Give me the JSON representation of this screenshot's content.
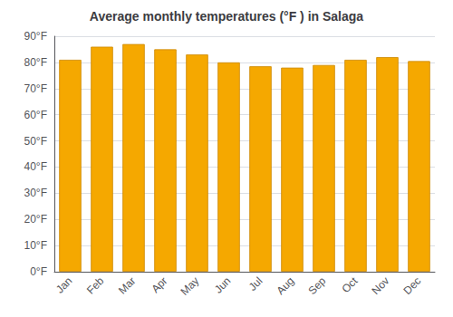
{
  "chart_data": {
    "type": "bar",
    "title": "Average monthly temperatures (°F ) in Salaga",
    "categories": [
      "Jan",
      "Feb",
      "Mar",
      "Apr",
      "May",
      "Jun",
      "Jul",
      "Aug",
      "Sep",
      "Oct",
      "Nov",
      "Dec"
    ],
    "values": [
      81,
      86,
      87,
      85,
      83,
      80,
      78.5,
      78,
      79,
      81,
      82,
      80.5
    ],
    "color": "#F5A800",
    "ylim": [
      0,
      90
    ],
    "yticks": [
      {
        "value": 0,
        "label": "0°F"
      },
      {
        "value": 10,
        "label": "10°F"
      },
      {
        "value": 20,
        "label": "20°F"
      },
      {
        "value": 30,
        "label": "30°F"
      },
      {
        "value": 40,
        "label": "40°F"
      },
      {
        "value": 50,
        "label": "50°F"
      },
      {
        "value": 60,
        "label": "60°F"
      },
      {
        "value": 70,
        "label": "70°F"
      },
      {
        "value": 80,
        "label": "80°F"
      },
      {
        "value": 90,
        "label": "90°F"
      }
    ],
    "grid": true
  }
}
